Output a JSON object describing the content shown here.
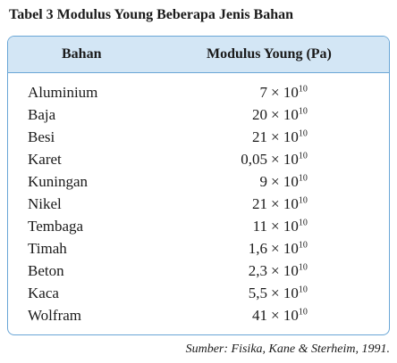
{
  "title": "Tabel 3 Modulus Young Beberapa Jenis Bahan",
  "table": {
    "headers": [
      "Bahan",
      "Modulus Young (Pa)"
    ],
    "rows": [
      {
        "bahan": "Aluminium",
        "mantissa": "7",
        "base": "× 10",
        "exponent": "10"
      },
      {
        "bahan": "Baja",
        "mantissa": "20",
        "base": "× 10",
        "exponent": "10"
      },
      {
        "bahan": "Besi",
        "mantissa": "21",
        "base": "× 10",
        "exponent": "10"
      },
      {
        "bahan": "Karet",
        "mantissa": "0,05",
        "base": "× 10",
        "exponent": "10"
      },
      {
        "bahan": "Kuningan",
        "mantissa": "9",
        "base": "× 10",
        "exponent": "10"
      },
      {
        "bahan": "Nikel",
        "mantissa": "21",
        "base": "× 10",
        "exponent": "10"
      },
      {
        "bahan": "Tembaga",
        "mantissa": "11",
        "base": "× 10",
        "exponent": "10"
      },
      {
        "bahan": "Timah",
        "mantissa": "1,6",
        "base": "× 10",
        "exponent": "10"
      },
      {
        "bahan": "Beton",
        "mantissa": "2,3",
        "base": "× 10",
        "exponent": "10"
      },
      {
        "bahan": "Kaca",
        "mantissa": "5,5",
        "base": "× 10",
        "exponent": "10"
      },
      {
        "bahan": "Wolfram",
        "mantissa": "41",
        "base": "× 10",
        "exponent": "10"
      }
    ]
  },
  "source": "Sumber: Fisika, Kane & Sterheim, 1991."
}
